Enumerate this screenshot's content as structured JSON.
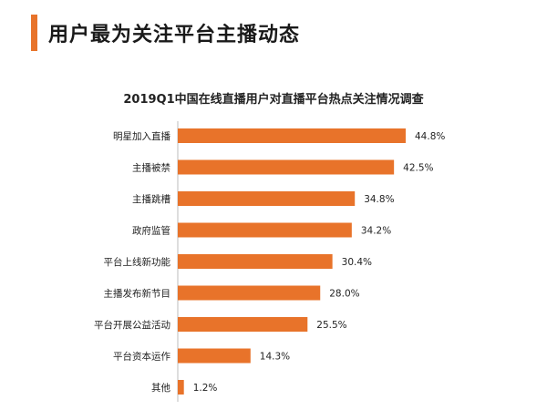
{
  "header": {
    "title": "用户最为关注平台主播动态"
  },
  "colors": {
    "accent": "#e8732a",
    "bar": "#e8732a",
    "axis": "#bdbdbd"
  },
  "chart_data": {
    "type": "bar",
    "orientation": "horizontal",
    "title": "2019Q1中国在线直播用户对直播平台热点关注情况调查",
    "categories": [
      "明星加入直播",
      "主播被禁",
      "主播跳槽",
      "政府监管",
      "平台上线新功能",
      "主播发布新节目",
      "平台开展公益活动",
      "平台资本运作",
      "其他"
    ],
    "values": [
      44.8,
      42.5,
      34.8,
      34.2,
      30.4,
      28.0,
      25.5,
      14.3,
      1.2
    ],
    "value_labels": [
      "44.8%",
      "42.5%",
      "34.8%",
      "34.2%",
      "30.4%",
      "28.0%",
      "25.5%",
      "14.3%",
      "1.2%"
    ],
    "unit": "%",
    "grid": false,
    "xlim": [
      0,
      50
    ]
  }
}
